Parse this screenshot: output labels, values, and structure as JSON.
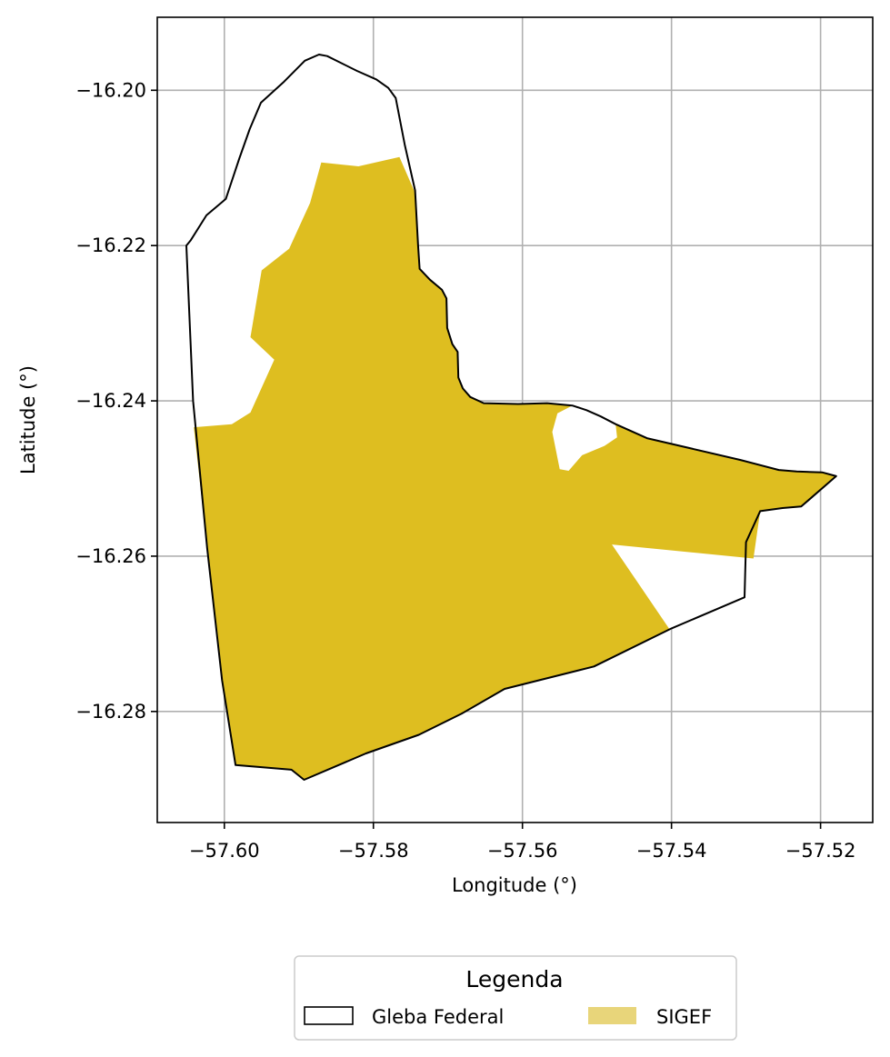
{
  "chart_data": {
    "type": "map",
    "xlabel": "Longitude (°)",
    "ylabel": "Latitude (°)",
    "xlim": [
      -57.609,
      -57.513
    ],
    "ylim": [
      -16.2943,
      -16.1906
    ],
    "xticks": [
      -57.6,
      -57.58,
      -57.56,
      -57.54,
      -57.52
    ],
    "xtick_labels": [
      "−57.60",
      "−57.58",
      "−57.56",
      "−57.54",
      "−57.52"
    ],
    "yticks": [
      -16.2,
      -16.22,
      -16.24,
      -16.26,
      -16.28
    ],
    "ytick_labels": [
      "−16.20",
      "−16.22",
      "−16.24",
      "−16.26",
      "−16.28"
    ],
    "grid": true,
    "legend": {
      "title": "Legenda",
      "placement": "bottom-center, below plot",
      "entries": [
        {
          "label": "Gleba Federal",
          "style": "outline",
          "color": "#000000"
        },
        {
          "label": "SIGEF",
          "style": "filled",
          "color": "#e8d57a"
        }
      ]
    },
    "layers": [
      {
        "name": "Gleba Federal",
        "kind": "outline",
        "color": "#000000",
        "coords": [
          [
            -57.6045,
            -16.2193
          ],
          [
            -57.6024,
            -16.2161
          ],
          [
            -57.5998,
            -16.214
          ],
          [
            -57.598,
            -16.2088
          ],
          [
            -57.5966,
            -16.205
          ],
          [
            -57.5951,
            -16.2016
          ],
          [
            -57.5921,
            -16.199
          ],
          [
            -57.5892,
            -16.1962
          ],
          [
            -57.5873,
            -16.1954
          ],
          [
            -57.5862,
            -16.1956
          ],
          [
            -57.5822,
            -16.1975
          ],
          [
            -57.5796,
            -16.1986
          ],
          [
            -57.578,
            -16.1997
          ],
          [
            -57.577,
            -16.201
          ],
          [
            -57.5758,
            -16.207
          ],
          [
            -57.5744,
            -16.2129
          ],
          [
            -57.574,
            -16.22
          ],
          [
            -57.5738,
            -16.223
          ],
          [
            -57.5724,
            -16.2244
          ],
          [
            -57.5708,
            -16.2257
          ],
          [
            -57.5702,
            -16.2268
          ],
          [
            -57.5701,
            -16.2306
          ],
          [
            -57.5694,
            -16.2327
          ],
          [
            -57.5687,
            -16.2337
          ],
          [
            -57.5686,
            -16.237
          ],
          [
            -57.568,
            -16.2384
          ],
          [
            -57.567,
            -16.2395
          ],
          [
            -57.5652,
            -16.2403
          ],
          [
            -57.5606,
            -16.2404
          ],
          [
            -57.5567,
            -16.2403
          ],
          [
            -57.5533,
            -16.2406
          ],
          [
            -57.5514,
            -16.2412
          ],
          [
            -57.5495,
            -16.242
          ],
          [
            -57.5475,
            -16.243
          ],
          [
            -57.5433,
            -16.2448
          ],
          [
            -57.5308,
            -16.2476
          ],
          [
            -57.5256,
            -16.2489
          ],
          [
            -57.5232,
            -16.2491
          ],
          [
            -57.5198,
            -16.2492
          ],
          [
            -57.5179,
            -16.2497
          ],
          [
            -57.5226,
            -16.2536
          ],
          [
            -57.5251,
            -16.2538
          ],
          [
            -57.5281,
            -16.2542
          ],
          [
            -57.53,
            -16.2582
          ],
          [
            -57.5302,
            -16.2653
          ],
          [
            -57.54,
            -16.2693
          ],
          [
            -57.5504,
            -16.2742
          ],
          [
            -57.5624,
            -16.2771
          ],
          [
            -57.5682,
            -16.2803
          ],
          [
            -57.5739,
            -16.283
          ],
          [
            -57.581,
            -16.2854
          ],
          [
            -57.5893,
            -16.2888
          ],
          [
            -57.591,
            -16.2875
          ],
          [
            -57.5985,
            -16.2869
          ],
          [
            -57.6003,
            -16.276
          ],
          [
            -57.6023,
            -16.259
          ],
          [
            -57.6042,
            -16.24
          ],
          [
            -57.6051,
            -16.22
          ],
          [
            -57.6045,
            -16.2193
          ]
        ]
      },
      {
        "name": "SIGEF",
        "kind": "fill",
        "color": "#debe20",
        "coords": [
          [
            -57.587,
            -16.2093
          ],
          [
            -57.582,
            -16.2098
          ],
          [
            -57.5765,
            -16.2086
          ],
          [
            -57.5745,
            -16.213
          ],
          [
            -57.574,
            -16.22
          ],
          [
            -57.5738,
            -16.223
          ],
          [
            -57.5724,
            -16.2244
          ],
          [
            -57.5708,
            -16.2257
          ],
          [
            -57.5702,
            -16.2268
          ],
          [
            -57.5701,
            -16.2306
          ],
          [
            -57.5694,
            -16.2327
          ],
          [
            -57.5687,
            -16.2337
          ],
          [
            -57.5686,
            -16.237
          ],
          [
            -57.568,
            -16.2384
          ],
          [
            -57.567,
            -16.2395
          ],
          [
            -57.5652,
            -16.2403
          ],
          [
            -57.5606,
            -16.2404
          ],
          [
            -57.5567,
            -16.2403
          ],
          [
            -57.5533,
            -16.2406
          ],
          [
            -57.5553,
            -16.2416
          ],
          [
            -57.556,
            -16.244
          ],
          [
            -57.555,
            -16.2488
          ],
          [
            -57.5538,
            -16.249
          ],
          [
            -57.552,
            -16.247
          ],
          [
            -57.549,
            -16.2458
          ],
          [
            -57.5473,
            -16.2447
          ],
          [
            -57.5475,
            -16.243
          ],
          [
            -57.5433,
            -16.2448
          ],
          [
            -57.5308,
            -16.2476
          ],
          [
            -57.5256,
            -16.2489
          ],
          [
            -57.5232,
            -16.2491
          ],
          [
            -57.5198,
            -16.2492
          ],
          [
            -57.5179,
            -16.2497
          ],
          [
            -57.5226,
            -16.2536
          ],
          [
            -57.5251,
            -16.2538
          ],
          [
            -57.5281,
            -16.2542
          ],
          [
            -57.529,
            -16.2603
          ],
          [
            -57.548,
            -16.2585
          ],
          [
            -57.5402,
            -16.2695
          ],
          [
            -57.5504,
            -16.2742
          ],
          [
            -57.5624,
            -16.2771
          ],
          [
            -57.5682,
            -16.2803
          ],
          [
            -57.5739,
            -16.283
          ],
          [
            -57.581,
            -16.2854
          ],
          [
            -57.5893,
            -16.2888
          ],
          [
            -57.591,
            -16.2875
          ],
          [
            -57.5985,
            -16.2869
          ],
          [
            -57.6003,
            -16.276
          ],
          [
            -57.6023,
            -16.259
          ],
          [
            -57.6041,
            -16.2434
          ],
          [
            -57.599,
            -16.243
          ],
          [
            -57.5965,
            -16.2415
          ],
          [
            -57.5933,
            -16.2347
          ],
          [
            -57.5965,
            -16.2318
          ],
          [
            -57.595,
            -16.2232
          ],
          [
            -57.5913,
            -16.2204
          ],
          [
            -57.5885,
            -16.2145
          ],
          [
            -57.587,
            -16.2093
          ]
        ]
      }
    ]
  }
}
